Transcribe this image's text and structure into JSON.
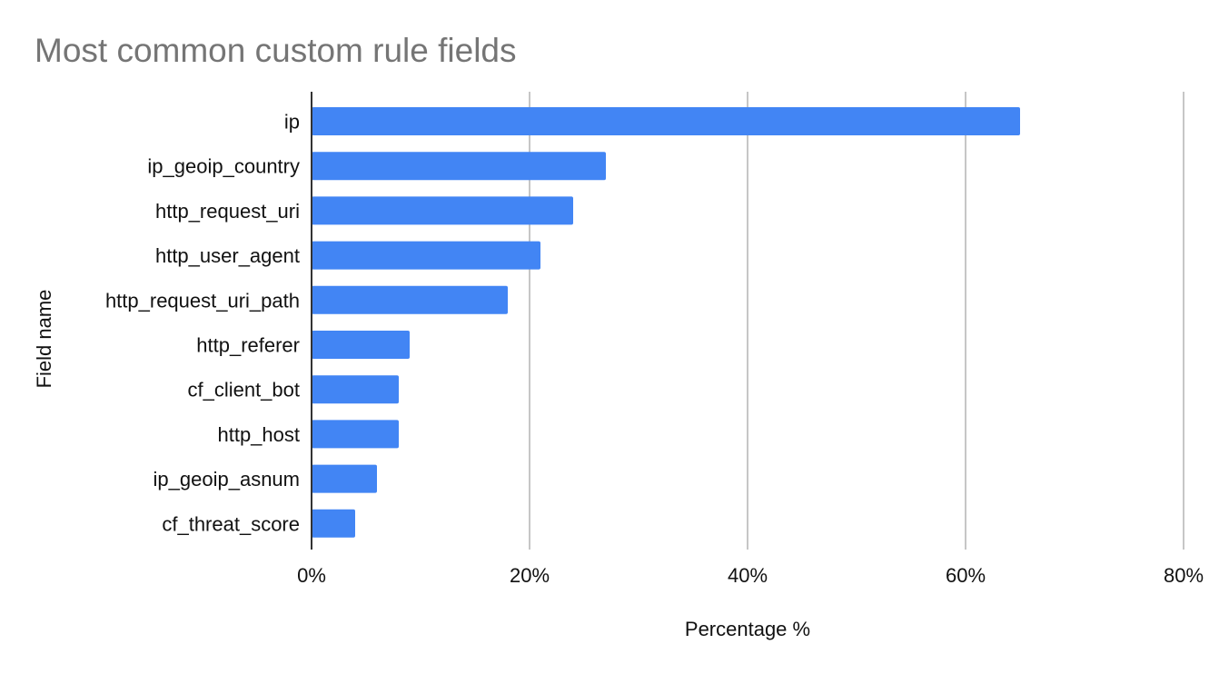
{
  "chart_data": {
    "type": "bar",
    "orientation": "horizontal",
    "title": "Most common custom rule fields",
    "xlabel": "Percentage %",
    "ylabel": "Field name",
    "categories": [
      "ip",
      "ip_geoip_country",
      "http_request_uri",
      "http_user_agent",
      "http_request_uri_path",
      "http_referer",
      "cf_client_bot",
      "http_host",
      "ip_geoip_asnum",
      "cf_threat_score"
    ],
    "values": [
      65,
      27,
      24,
      21,
      18,
      9,
      8,
      8,
      6,
      4
    ],
    "xlim": [
      0,
      80
    ],
    "xticks": [
      0,
      20,
      40,
      60,
      80
    ],
    "xtick_labels": [
      "0%",
      "20%",
      "40%",
      "60%",
      "80%"
    ],
    "grid": "vertical",
    "legend": "none",
    "bar_color": "#4285f4"
  }
}
